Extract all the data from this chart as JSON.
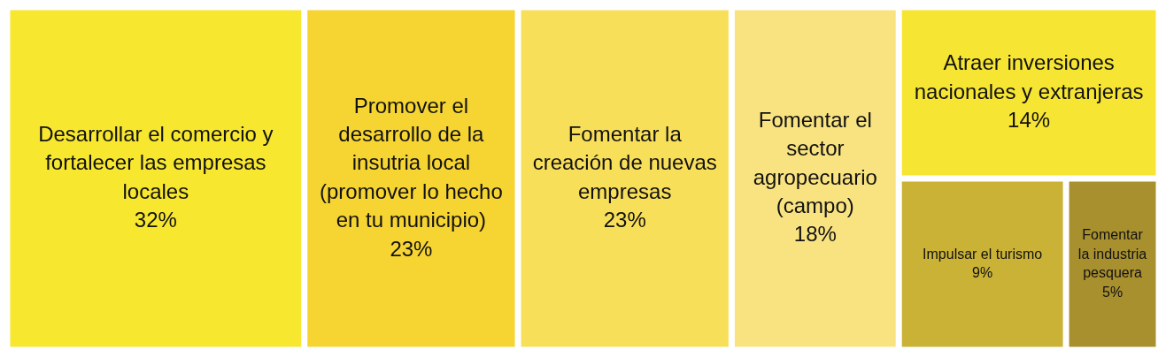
{
  "chart_data": {
    "type": "other",
    "categories": [
      "Desarrollar el comercio y fortalecer las empresas locales",
      "Promover el desarrollo de la insutria local (promover lo hecho en tu municipio)",
      "Fomentar la creación de nuevas empresas",
      "Fomentar el sector agropecuario (campo)",
      "Atraer inversiones nacionales y extranjeras",
      "Impulsar el turismo",
      "Fomentar la industria pesquera"
    ],
    "values": [
      32,
      23,
      23,
      18,
      14,
      9,
      5
    ],
    "value_labels": [
      "32%",
      "23%",
      "23%",
      "18%",
      "14%",
      "9%",
      "5%"
    ],
    "colors": [
      "#f7e72f",
      "#f6d432",
      "#f8df5a",
      "#f9e381",
      "#f6e533",
      "#c9b236",
      "#a8902f"
    ]
  }
}
